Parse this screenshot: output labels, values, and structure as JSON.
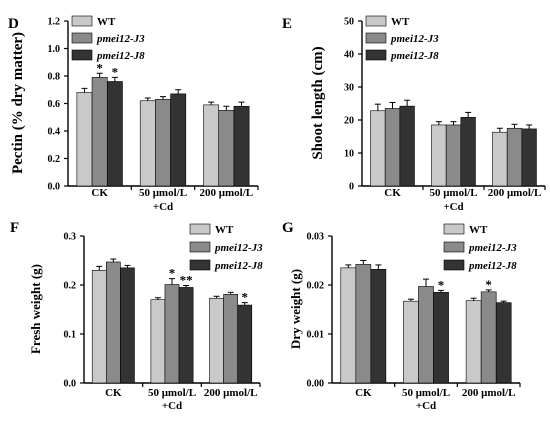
{
  "chart_data": [
    {
      "panel": "D",
      "type": "bar",
      "ylabel": "Pectin (% dry matter)",
      "ylim": [
        0,
        1.2
      ],
      "yticks": [
        "0.0",
        "0.2",
        "0.4",
        "0.6",
        "0.8",
        "1.0",
        "1.2"
      ],
      "categories": [
        "CK",
        "50 μmol/L",
        "200 μmol/L"
      ],
      "category_extra": [
        "",
        "+Cd",
        ""
      ],
      "legend": [
        "WT",
        "pmei12-J3",
        "pmei12-J8"
      ],
      "series": [
        {
          "name": "WT",
          "values": [
            0.68,
            0.62,
            0.59
          ],
          "errors": [
            0.03,
            0.02,
            0.02
          ],
          "sig": [
            "",
            "",
            ""
          ]
        },
        {
          "name": "pmei12-J3",
          "values": [
            0.79,
            0.63,
            0.55
          ],
          "errors": [
            0.03,
            0.02,
            0.03
          ],
          "sig": [
            "*",
            "",
            ""
          ]
        },
        {
          "name": "pmei12-J8",
          "values": [
            0.76,
            0.67,
            0.58
          ],
          "errors": [
            0.03,
            0.03,
            0.03
          ],
          "sig": [
            "*",
            "",
            ""
          ]
        }
      ]
    },
    {
      "panel": "E",
      "type": "bar",
      "ylabel": "Shoot length  (cm)",
      "ylim": [
        0,
        50
      ],
      "yticks": [
        "0",
        "10",
        "20",
        "30",
        "40",
        "50"
      ],
      "categories": [
        "CK",
        "50 μmol/L",
        "200 μmol/L"
      ],
      "category_extra": [
        "",
        "+Cd",
        ""
      ],
      "legend": [
        "WT",
        "pmei12-J3",
        "pmei12-J8"
      ],
      "series": [
        {
          "name": "WT",
          "values": [
            22.8,
            18.5,
            16.3
          ],
          "errors": [
            2.0,
            1.0,
            1.2
          ],
          "sig": [
            "",
            "",
            ""
          ]
        },
        {
          "name": "pmei12-J3",
          "values": [
            23.5,
            18.5,
            17.5
          ],
          "errors": [
            1.8,
            1.0,
            1.2
          ],
          "sig": [
            "",
            "",
            ""
          ]
        },
        {
          "name": "pmei12-J8",
          "values": [
            24.2,
            20.8,
            17.3
          ],
          "errors": [
            1.8,
            1.5,
            1.2
          ],
          "sig": [
            "",
            "",
            ""
          ]
        }
      ]
    },
    {
      "panel": "F",
      "type": "bar",
      "ylabel": "Fresh weight (g)",
      "ylim": [
        0,
        0.3
      ],
      "yticks": [
        "0.0",
        "0.1",
        "0.2",
        "0.3"
      ],
      "categories": [
        "CK",
        "50 μmol/L",
        "200 μmol/L"
      ],
      "category_extra": [
        "",
        "+Cd",
        ""
      ],
      "legend": [
        "WT",
        "pmei12-J3",
        "pmei12-J8"
      ],
      "series": [
        {
          "name": "WT",
          "values": [
            0.23,
            0.17,
            0.173
          ],
          "errors": [
            0.008,
            0.004,
            0.004
          ],
          "sig": [
            "",
            "",
            ""
          ]
        },
        {
          "name": "pmei12-J3",
          "values": [
            0.247,
            0.201,
            0.181
          ],
          "errors": [
            0.006,
            0.012,
            0.004
          ],
          "sig": [
            "",
            "*",
            ""
          ]
        },
        {
          "name": "pmei12-J8",
          "values": [
            0.235,
            0.195,
            0.159
          ],
          "errors": [
            0.005,
            0.004,
            0.005
          ],
          "sig": [
            "",
            "**",
            "*"
          ]
        }
      ]
    },
    {
      "panel": "G",
      "type": "bar",
      "ylabel": "Dry weight (g)",
      "ylim": [
        0,
        0.03
      ],
      "yticks": [
        "0.00",
        "0.01",
        "0.02",
        "0.03"
      ],
      "categories": [
        "CK",
        "50 μmol/L",
        "200 μmol/L"
      ],
      "category_extra": [
        "",
        "+Cd",
        ""
      ],
      "legend": [
        "WT",
        "pmei12-J3",
        "pmei12-J8"
      ],
      "series": [
        {
          "name": "WT",
          "values": [
            0.0235,
            0.0167,
            0.0168
          ],
          "errors": [
            0.0006,
            0.0004,
            0.0005
          ],
          "sig": [
            "",
            "",
            ""
          ]
        },
        {
          "name": "pmei12-J3",
          "values": [
            0.0242,
            0.0197,
            0.0186
          ],
          "errors": [
            0.0008,
            0.0015,
            0.0004
          ],
          "sig": [
            "",
            "",
            "*"
          ]
        },
        {
          "name": "pmei12-J8",
          "values": [
            0.0232,
            0.0185,
            0.0164
          ],
          "errors": [
            0.0009,
            0.0004,
            0.0003
          ],
          "sig": [
            "",
            "*",
            ""
          ]
        }
      ]
    }
  ],
  "colors": {
    "series": [
      "#c9c9c9",
      "#8a8a8a",
      "#333333"
    ]
  }
}
